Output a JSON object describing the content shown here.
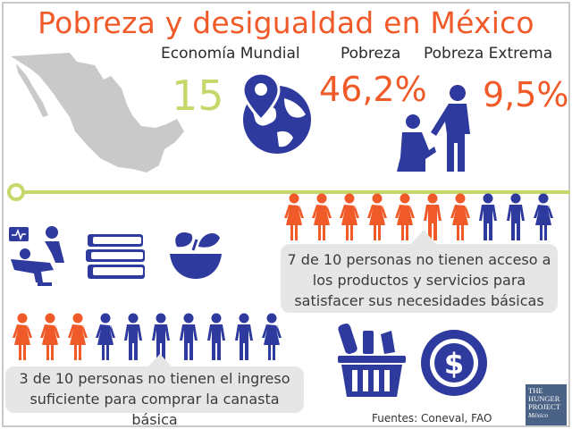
{
  "title": "Pobreza y desigualdad en México",
  "stats": {
    "economia_label": "Economía Mundial",
    "economia_value": "15",
    "pobreza_label": "Pobreza",
    "pobreza_value": "46,2%",
    "extrema_label": "Pobreza Extrema",
    "extrema_value": "9,5%"
  },
  "facts": {
    "fact1_line1": "7 de 10 personas no tienen acceso a",
    "fact1_line2": "los productos y servicios para",
    "fact1_line3": "satisfacer sus necesidades básicas",
    "fact1_orange": 7,
    "fact1_total": 10,
    "fact2_line1": "3 de 10 personas no tienen el ingreso",
    "fact2_line2": "suficiente para comprar la canasta básica",
    "fact2_orange": 3,
    "fact2_total": 10
  },
  "source": "Fuentes: Coneval, FAO",
  "logo": {
    "line1": "THE",
    "line2": "HUNGER",
    "line3": "PROJECT",
    "line4": "México"
  },
  "colors": {
    "orange": "#f05a28",
    "blue": "#2e3a9e",
    "green": "#c5d96a",
    "gray": "#c9c9c9",
    "bubble": "#e6e6e6"
  },
  "icons": [
    "mexico-map-icon",
    "globe-location-icon",
    "charity-people-icon",
    "dentist-icon",
    "books-icon",
    "food-bowl-icon",
    "grocery-basket-icon",
    "dollar-coin-icon"
  ]
}
